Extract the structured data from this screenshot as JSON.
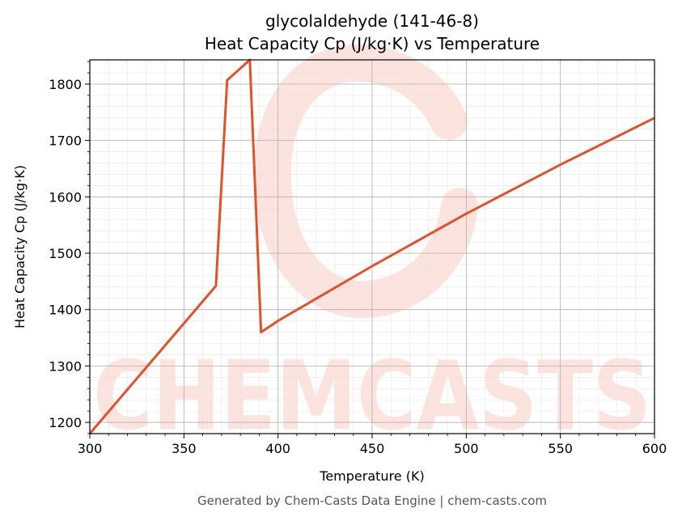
{
  "colors": {
    "line": "#e0522a",
    "watermark": "#fde3dd",
    "grid_major": "#b0b0b0",
    "grid_minor": "#e6e6e6"
  },
  "watermark": {
    "text": "CHEMCASTS"
  },
  "footer": {
    "text": "Generated by Chem-Casts Data Engine | chem-casts.com"
  },
  "chart_data": {
    "type": "line",
    "title": "glycolaldehyde (141-46-8)",
    "subtitle": "Heat Capacity Cp (J/kg·K) vs Temperature",
    "xlabel": "Temperature (K)",
    "ylabel": "Heat Capacity Cp (J/kg·K)",
    "xlim": [
      300,
      600
    ],
    "ylim": [
      1180,
      1843
    ],
    "xticks": [
      300,
      350,
      400,
      450,
      500,
      550,
      600
    ],
    "yticks": [
      1200,
      1300,
      1400,
      1500,
      1600,
      1700,
      1800
    ],
    "grid": true,
    "series": [
      {
        "x": [
          300,
          367,
          373,
          385,
          391,
          400,
          450,
          500,
          550,
          600
        ],
        "y": [
          1180,
          1442,
          1807,
          1843,
          1360,
          1380,
          1477,
          1570,
          1657,
          1740
        ]
      }
    ]
  }
}
